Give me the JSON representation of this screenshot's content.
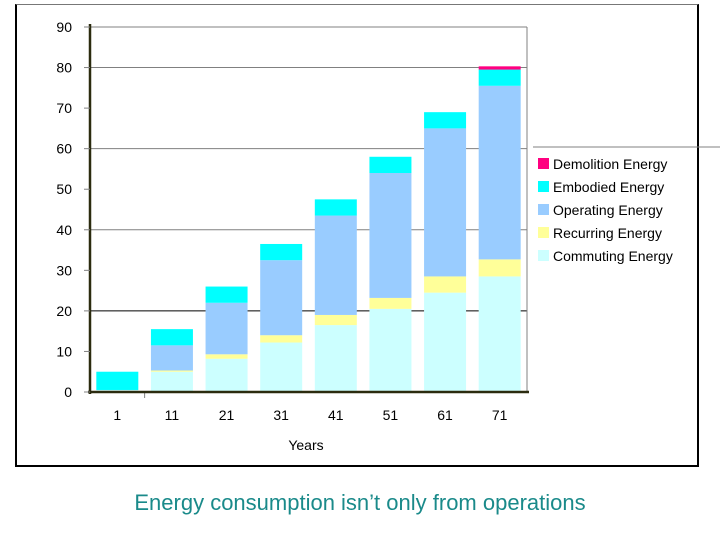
{
  "chart_data": {
    "type": "bar",
    "stacked": true,
    "title": "",
    "xlabel": "Years",
    "ylabel": "",
    "ylim": [
      0,
      90
    ],
    "yticks": [
      0,
      10,
      20,
      30,
      40,
      50,
      60,
      70,
      80,
      90
    ],
    "gridlines": [
      20,
      40,
      60,
      80,
      90
    ],
    "categories": [
      "1",
      "11",
      "21",
      "31",
      "41",
      "51",
      "61",
      "71"
    ],
    "legend_position": "right",
    "series": [
      {
        "name": "Commuting Energy",
        "color": "#ccffff",
        "values": [
          0.5,
          5,
          8.2,
          12.2,
          16.5,
          20.5,
          24.5,
          28.5
        ]
      },
      {
        "name": "Recurring Energy",
        "color": "#ffff99",
        "values": [
          0,
          0.3,
          1.1,
          1.8,
          2.5,
          2.7,
          4.0,
          4.2
        ]
      },
      {
        "name": "Operating Energy",
        "color": "#99ccff",
        "values": [
          0,
          6.2,
          12.7,
          18.5,
          24.5,
          30.8,
          36.5,
          42.8
        ]
      },
      {
        "name": "Embodied Energy",
        "color": "#00ffff",
        "values": [
          4.5,
          4.0,
          4.0,
          4.0,
          4.0,
          4.0,
          4.0,
          4.0
        ]
      },
      {
        "name": "Demolition Energy",
        "color": "#ff0080",
        "values": [
          0,
          0,
          0,
          0,
          0,
          0,
          0,
          0.8
        ]
      }
    ],
    "legend_order": [
      "Demolition Energy",
      "Embodied Energy",
      "Operating Energy",
      "Recurring Energy",
      "Commuting Energy"
    ]
  },
  "caption": "Energy consumption isn’t only from operations"
}
